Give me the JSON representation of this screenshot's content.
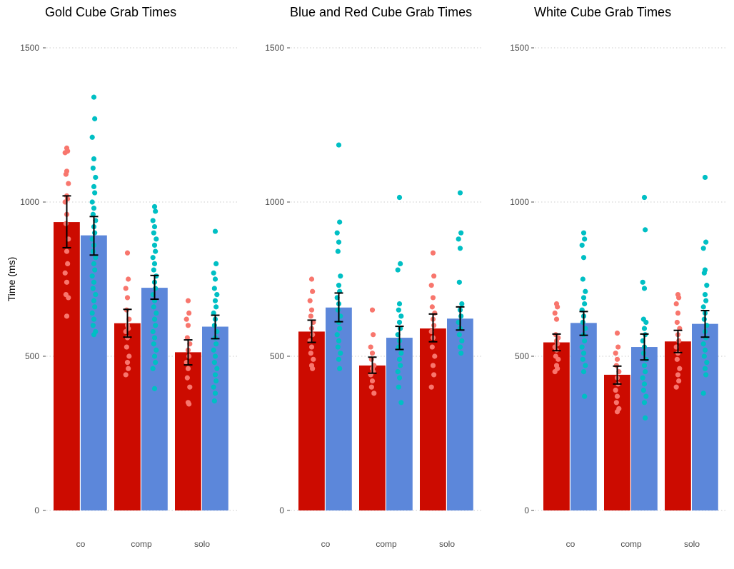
{
  "y_axis_label": "Time (ms)",
  "colors": {
    "bar_left": "#cc0b00",
    "bar_right": "#5c87da",
    "points_left": "#f8766d",
    "points_right": "#00bfc4",
    "error_bar": "#000000",
    "grid": "#cccccc"
  },
  "chart_data": [
    {
      "type": "bar",
      "title": "Gold Cube Grab Times",
      "categories": [
        "co",
        "comp",
        "solo"
      ],
      "ylim": [
        0,
        1500
      ],
      "yticks": [
        0,
        500,
        1000,
        1500
      ],
      "grid": true,
      "series": [
        {
          "values": [
            935,
            607,
            513
          ],
          "error": [
            [
              852,
              1020
            ],
            [
              562,
              652
            ],
            [
              472,
              553
            ]
          ],
          "points": [
            [
              1175,
              1165,
              1160,
              1100,
              1090,
              1060,
              1020,
              1010,
              1000,
              960,
              930,
              880,
              840,
              800,
              770,
              740,
              700,
              690,
              630
            ],
            [
              835,
              750,
              720,
              690,
              650,
              620,
              600,
              590,
              580,
              560,
              530,
              500,
              480,
              460,
              440
            ],
            [
              680,
              640,
              620,
              600,
              560,
              540,
              520,
              500,
              480,
              460,
              430,
              400,
              350,
              345
            ]
          ]
        },
        {
          "values": [
            892,
            722,
            596
          ],
          "error": [
            [
              828,
              953
            ],
            [
              685,
              762
            ],
            [
              557,
              633
            ]
          ],
          "points": [
            [
              1340,
              1270,
              1210,
              1140,
              1110,
              1080,
              1050,
              1030,
              1000,
              980,
              960,
              940,
              920,
              900,
              880,
              860,
              840,
              820,
              800,
              780,
              760,
              740,
              720,
              700,
              680,
              660,
              640,
              620,
              600,
              580,
              570
            ],
            [
              985,
              970,
              940,
              920,
              900,
              880,
              860,
              840,
              820,
              800,
              780,
              760,
              740,
              720,
              700,
              680,
              660,
              640,
              620,
              600,
              580,
              560,
              540,
              520,
              500,
              480,
              460,
              395
            ],
            [
              905,
              800,
              770,
              750,
              720,
              700,
              680,
              660,
              640,
              620,
              600,
              580,
              560,
              540,
              520,
              500,
              480,
              460,
              440,
              420,
              400,
              380,
              355
            ]
          ]
        }
      ]
    },
    {
      "type": "bar",
      "title": "Blue and Red Cube Grab Times",
      "categories": [
        "co",
        "comp",
        "solo"
      ],
      "ylim": [
        0,
        1500
      ],
      "yticks": [
        0,
        500,
        1000,
        1500
      ],
      "grid": true,
      "series": [
        {
          "values": [
            580,
            470,
            590
          ],
          "error": [
            [
              545,
              617
            ],
            [
              445,
              497
            ],
            [
              547,
              637
            ]
          ],
          "points": [
            [
              750,
              710,
              680,
              650,
              630,
              610,
              590,
              570,
              550,
              530,
              510,
              490,
              470,
              460
            ],
            [
              650,
              570,
              530,
              510,
              490,
              470,
              460,
              450,
              440,
              420,
              400,
              380
            ],
            [
              835,
              760,
              730,
              690,
              660,
              640,
              620,
              600,
              580,
              560,
              530,
              500,
              470,
              440,
              400
            ]
          ]
        },
        {
          "values": [
            658,
            560,
            622
          ],
          "error": [
            [
              612,
              705
            ],
            [
              522,
              597
            ],
            [
              585,
              660
            ]
          ],
          "points": [
            [
              1185,
              935,
              900,
              870,
              840,
              760,
              730,
              710,
              690,
              670,
              650,
              630,
              610,
              590,
              570,
              550,
              530,
              510,
              490,
              460
            ],
            [
              1015,
              800,
              780,
              670,
              650,
              630,
              610,
              590,
              570,
              550,
              530,
              510,
              490,
              470,
              450,
              430,
              400,
              350
            ],
            [
              1030,
              900,
              880,
              850,
              740,
              670,
              650,
              630,
              610,
              590,
              570,
              550,
              530,
              510
            ]
          ]
        }
      ]
    },
    {
      "type": "bar",
      "title": "White Cube Grab Times",
      "categories": [
        "co",
        "comp",
        "solo"
      ],
      "ylim": [
        0,
        1500
      ],
      "yticks": [
        0,
        500,
        1000,
        1500
      ],
      "grid": true,
      "series": [
        {
          "values": [
            545,
            440,
            548
          ],
          "error": [
            [
              518,
              572
            ],
            [
              410,
              468
            ],
            [
              512,
              584
            ]
          ],
          "points": [
            [
              670,
              660,
              640,
              620,
              570,
              560,
              550,
              540,
              530,
              520,
              500,
              490,
              470,
              460,
              450
            ],
            [
              575,
              530,
              510,
              490,
              470,
              450,
              430,
              410,
              390,
              370,
              350,
              330,
              320
            ],
            [
              700,
              690,
              670,
              640,
              610,
              590,
              570,
              550,
              530,
              510,
              490,
              460,
              440,
              420,
              400
            ]
          ]
        },
        {
          "values": [
            608,
            530,
            605
          ],
          "error": [
            [
              568,
              645
            ],
            [
              488,
              572
            ],
            [
              562,
              648
            ]
          ],
          "points": [
            [
              900,
              880,
              860,
              820,
              750,
              710,
              690,
              670,
              650,
              630,
              610,
              590,
              570,
              550,
              530,
              510,
              490,
              470,
              450,
              370
            ],
            [
              1015,
              910,
              740,
              720,
              620,
              610,
              590,
              570,
              550,
              530,
              510,
              490,
              470,
              450,
              430,
              410,
              390,
              370,
              350,
              300
            ],
            [
              1080,
              870,
              850,
              780,
              770,
              730,
              700,
              680,
              660,
              640,
              620,
              600,
              580,
              560,
              540,
              520,
              500,
              480,
              460,
              440,
              380
            ]
          ]
        }
      ]
    }
  ]
}
